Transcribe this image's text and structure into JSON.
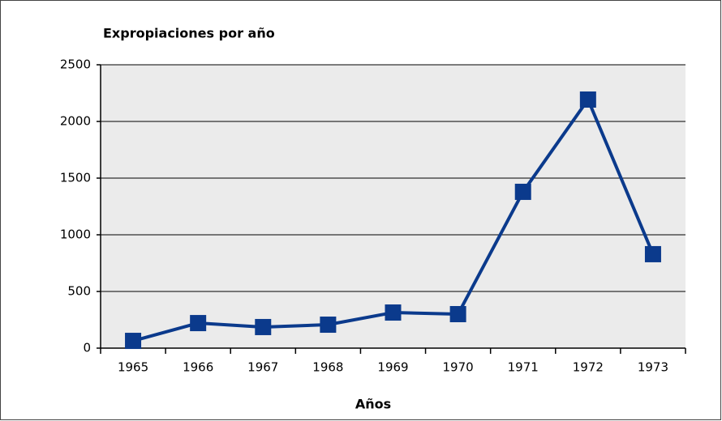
{
  "chart_data": {
    "type": "line",
    "title": "Expropiaciones por año",
    "x_label": "Años",
    "categories": [
      "1965",
      "1966",
      "1967",
      "1968",
      "1969",
      "1970",
      "1971",
      "1972",
      "1973"
    ],
    "values": [
      64,
      221,
      186,
      207,
      314,
      300,
      1379,
      2193,
      829
    ],
    "color": "#0b3a8c",
    "ylim": [
      0,
      2500
    ],
    "yticks": [
      0,
      500,
      1000,
      1500,
      2000,
      2500
    ],
    "grid": true
  }
}
